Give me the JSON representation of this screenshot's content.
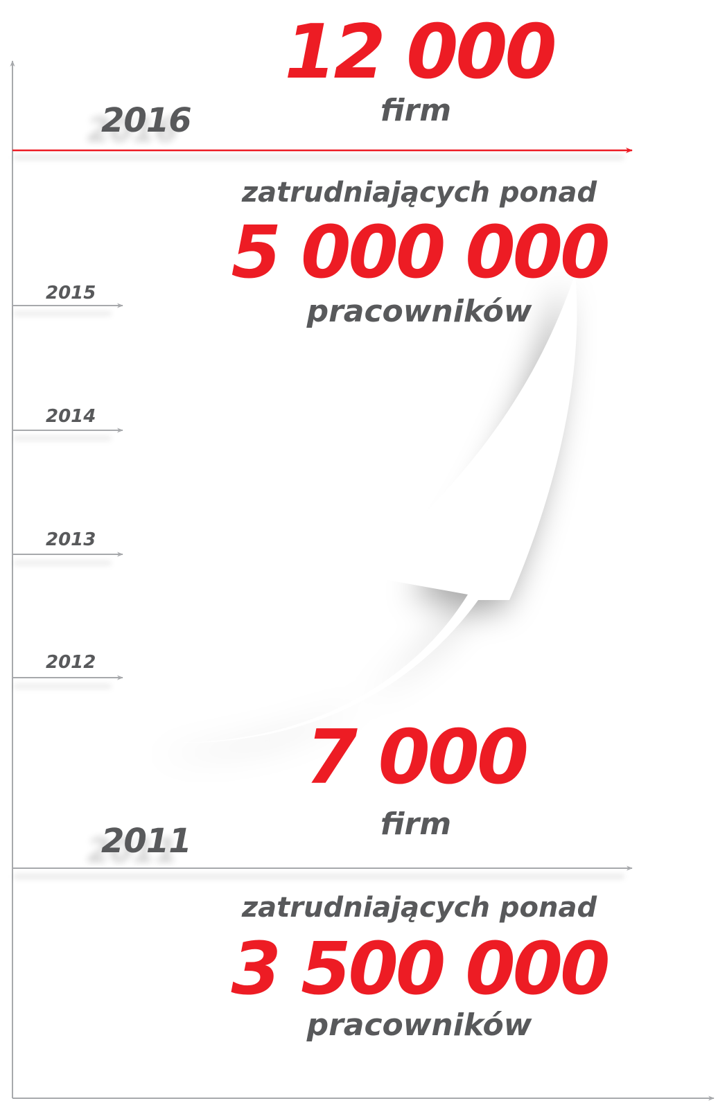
{
  "colors": {
    "accent": "#ed1c24",
    "text": "#58595b",
    "axis": "#a7a9ac"
  },
  "top": {
    "year": "2016",
    "firms_count": "12 000",
    "firms_label": "firm",
    "employ_label": "zatrudniających ponad",
    "employees_count": "5 000 000",
    "employees_label": "pracowników"
  },
  "years": [
    "2015",
    "2014",
    "2013",
    "2012"
  ],
  "bottom": {
    "year": "2011",
    "firms_count": "7 000",
    "firms_label": "firm",
    "employ_label": "zatrudniających ponad",
    "employees_count": "3 500 000",
    "employees_label": "pracowników"
  }
}
